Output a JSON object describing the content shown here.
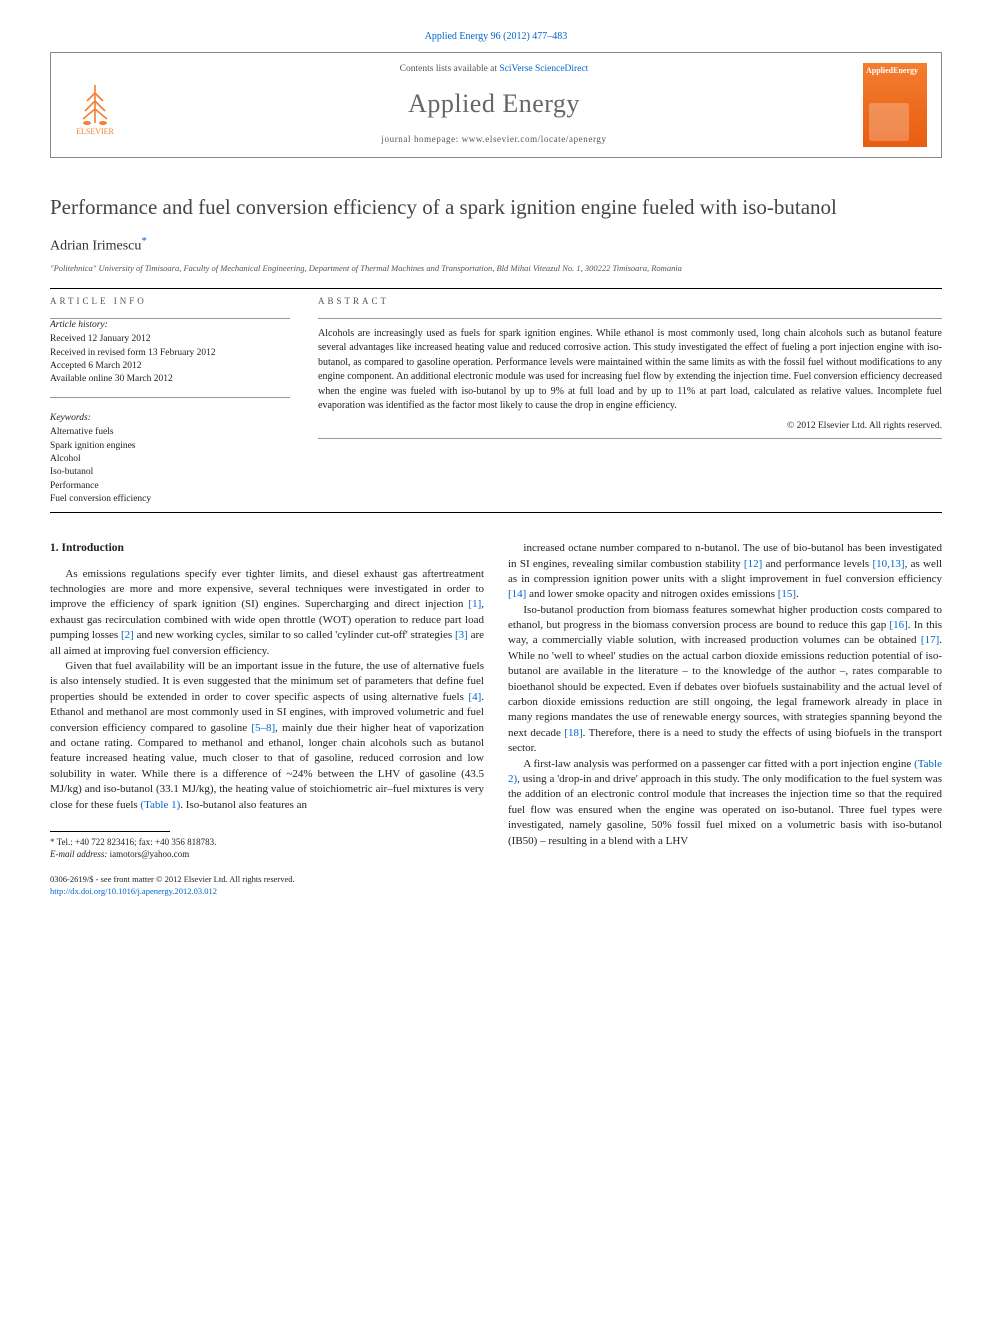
{
  "header": {
    "top_link": "Applied Energy 96 (2012) 477–483",
    "contents_prefix": "Contents lists available at ",
    "contents_link": "SciVerse ScienceDirect",
    "journal": "Applied Energy",
    "homepage_prefix": "journal homepage: ",
    "homepage_url": "www.elsevier.com/locate/apenergy",
    "publisher": "ELSEVIER",
    "cover_label": "AppliedEnergy"
  },
  "article": {
    "title": "Performance and fuel conversion efficiency of a spark ignition engine fueled with iso-butanol",
    "author": "Adrian Irimescu",
    "author_mark": "*",
    "affiliation": "\"Politehnica\" University of Timisoara, Faculty of Mechanical Engineering, Department of Thermal Machines and Transportation, Bld Mihai Viteazul No. 1, 300222 Timisoara, Romania"
  },
  "info": {
    "label": "ARTICLE INFO",
    "history_head": "Article history:",
    "history": [
      "Received 12 January 2012",
      "Received in revised form 13 February 2012",
      "Accepted 6 March 2012",
      "Available online 30 March 2012"
    ],
    "keywords_head": "Keywords:",
    "keywords": [
      "Alternative fuels",
      "Spark ignition engines",
      "Alcohol",
      "Iso-butanol",
      "Performance",
      "Fuel conversion efficiency"
    ]
  },
  "abstract": {
    "label": "ABSTRACT",
    "text": "Alcohols are increasingly used as fuels for spark ignition engines. While ethanol is most commonly used, long chain alcohols such as butanol feature several advantages like increased heating value and reduced corrosive action. This study investigated the effect of fueling a port injection engine with iso-butanol, as compared to gasoline operation. Performance levels were maintained within the same limits as with the fossil fuel without modifications to any engine component. An additional electronic module was used for increasing fuel flow by extending the injection time. Fuel conversion efficiency decreased when the engine was fueled with iso-butanol by up to 9% at full load and by up to 11% at part load, calculated as relative values. Incomplete fuel evaporation was identified as the factor most likely to cause the drop in engine efficiency.",
    "copyright": "© 2012 Elsevier Ltd. All rights reserved."
  },
  "body": {
    "sec1_head": "1. Introduction",
    "p1": "As emissions regulations specify ever tighter limits, and diesel exhaust gas aftertreatment technologies are more and more expensive, several techniques were investigated in order to improve the efficiency of spark ignition (SI) engines. Supercharging and direct injection [1], exhaust gas recirculation combined with wide open throttle (WOT) operation to reduce part load pumping losses [2] and new working cycles, similar to so called 'cylinder cut-off' strategies [3] are all aimed at improving fuel conversion efficiency.",
    "p2": "Given that fuel availability will be an important issue in the future, the use of alternative fuels is also intensely studied. It is even suggested that the minimum set of parameters that define fuel properties should be extended in order to cover specific aspects of using alternative fuels [4]. Ethanol and methanol are most commonly used in SI engines, with improved volumetric and fuel conversion efficiency compared to gasoline [5–8], mainly due their higher heat of vaporization and octane rating. Compared to methanol and ethanol, longer chain alcohols such as butanol feature increased heating value, much closer to that of gasoline, reduced corrosion and low solubility in water. While there is a difference of ~24% between the LHV of gasoline (43.5 MJ/kg) and iso-butanol (33.1 MJ/kg), the heating value of stoichiometric air–fuel mixtures is very close for these fuels (Table 1). Iso-butanol also features an",
    "p3": "increased octane number compared to n-butanol. The use of bio-butanol has been investigated in SI engines, revealing similar combustion stability [12] and performance levels [10,13], as well as in compression ignition power units with a slight improvement in fuel conversion efficiency [14] and lower smoke opacity and nitrogen oxides emissions [15].",
    "p4": "Iso-butanol production from biomass features somewhat higher production costs compared to ethanol, but progress in the biomass conversion process are bound to reduce this gap [16]. In this way, a commercially viable solution, with increased production volumes can be obtained [17]. While no 'well to wheel' studies on the actual carbon dioxide emissions reduction potential of iso-butanol are available in the literature – to the knowledge of the author –, rates comparable to bioethanol should be expected. Even if debates over biofuels sustainability and the actual level of carbon dioxide emissions reduction are still ongoing, the legal framework already in place in many regions mandates the use of renewable energy sources, with strategies spanning beyond the next decade [18]. Therefore, there is a need to study the effects of using biofuels in the transport sector.",
    "p5": "A first-law analysis was performed on a passenger car fitted with a port injection engine (Table 2), using a 'drop-in and drive' approach in this study. The only modification to the fuel system was the addition of an electronic control module that increases the injection time so that the required fuel flow was ensured when the engine was operated on iso-butanol. Three fuel types were investigated, namely gasoline, 50% fossil fuel mixed on a volumetric basis with iso-butanol (IB50) – resulting in a blend with a LHV"
  },
  "footnote": {
    "mark": "*",
    "tel": "Tel.: +40 722 823416; fax: +40 356 818783.",
    "email_label": "E-mail address:",
    "email": "iamotors@yahoo.com"
  },
  "footer": {
    "line1": "0306-2619/$ - see front matter © 2012 Elsevier Ltd. All rights reserved.",
    "doi": "http://dx.doi.org/10.1016/j.apenergy.2012.03.012"
  },
  "colors": {
    "link": "#0066cc",
    "accent": "#f47d30",
    "text": "#222222",
    "muted": "#666666"
  }
}
